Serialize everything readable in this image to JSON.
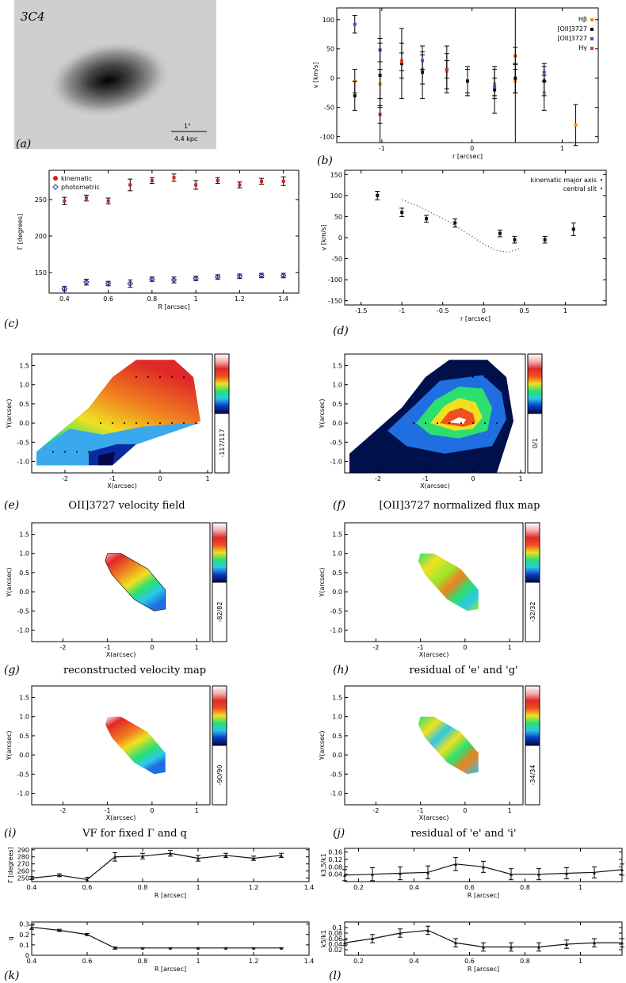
{
  "panels": {
    "a": {
      "label": "(a)",
      "object": "3C4",
      "scale_top": "1\"",
      "scale_bottom": "4.4 kpc"
    },
    "b": {
      "label": "(b)"
    },
    "c": {
      "label": "(c)"
    },
    "d": {
      "label": "(d)"
    },
    "e": {
      "label": "(e)",
      "caption": "OII]3727 velocity field",
      "colorbar": "-117/117"
    },
    "f": {
      "label": "(f)",
      "caption": "[OII]3727 normalized flux map",
      "colorbar": "0/1"
    },
    "g": {
      "label": "(g)",
      "caption": "reconstructed velocity map",
      "colorbar": "-82/82"
    },
    "h": {
      "label": "(h)",
      "caption": "residual of 'e' and 'g'",
      "colorbar": "-32/32"
    },
    "i": {
      "label": "(i)",
      "caption": "VF for fixed Γ and q",
      "colorbar": "-90/90"
    },
    "j": {
      "label": "(j)",
      "caption": "residual of 'e' and 'i'",
      "colorbar": "-34/34"
    },
    "k": {
      "label": "(k)"
    },
    "l": {
      "label": "(l)"
    }
  },
  "chart_data": [
    {
      "id": "b",
      "type": "scatter",
      "xlabel": "r [arcsec]",
      "ylabel": "v [km/s]",
      "xlim": [
        -1.5,
        1.4
      ],
      "ylim": [
        -110,
        120
      ],
      "xticks": [
        -1,
        0,
        1
      ],
      "yticks": [
        -100,
        -50,
        0,
        50,
        100
      ],
      "legend": "top-right",
      "series": [
        {
          "name": "Hβ",
          "color": "#e8902c",
          "x": [
            -1.3,
            -1.02,
            -0.78,
            -0.55,
            -0.28,
            -0.05,
            0.25,
            0.48,
            0.8,
            1.15
          ],
          "y": [
            -5,
            -10,
            30,
            15,
            12,
            -5,
            -10,
            -5,
            -25,
            -80
          ],
          "err": [
            20,
            25,
            30,
            25,
            30,
            20,
            25,
            20,
            30,
            35
          ]
        },
        {
          "name": "[OII]3727",
          "color": "#111111",
          "x": [
            -1.3,
            -1.02,
            -0.78,
            -0.55,
            -0.28,
            -0.05,
            0.25,
            0.48,
            0.8
          ],
          "y": [
            -30,
            5,
            25,
            10,
            15,
            -5,
            -20,
            0,
            -5
          ],
          "err": [
            25,
            55,
            60,
            45,
            40,
            25,
            40,
            25,
            25
          ]
        },
        {
          "name": "[OII]3727",
          "color": "#6a3dc8",
          "x": [
            -1.3,
            -1.02,
            -0.55,
            0.25,
            0.8
          ],
          "y": [
            92,
            48,
            30,
            -15,
            10
          ],
          "err": [
            15,
            20,
            15,
            15,
            15
          ]
        },
        {
          "name": "Hγ",
          "color": "#d83a2a",
          "x": [
            -1.02,
            -0.78,
            -0.28,
            0.48
          ],
          "y": [
            -62,
            28,
            15,
            38
          ],
          "err": [
            15,
            15,
            15,
            15
          ]
        }
      ]
    },
    {
      "id": "c",
      "type": "scatter",
      "xlabel": "R [arcsec]",
      "ylabel": "Γ [degrees]",
      "xlim": [
        0.33,
        1.47
      ],
      "ylim": [
        122,
        290
      ],
      "xticks": [
        0.4,
        0.6,
        0.8,
        1.0,
        1.2,
        1.4
      ],
      "yticks": [
        150,
        200,
        250
      ],
      "legend": "top-left",
      "series": [
        {
          "name": "kinematic",
          "color": "#d81e1e",
          "x": [
            0.4,
            0.5,
            0.6,
            0.7,
            0.8,
            0.9,
            1.0,
            1.1,
            1.2,
            1.3,
            1.4
          ],
          "y": [
            248,
            252,
            248,
            270,
            276,
            280,
            270,
            276,
            270,
            275,
            275
          ],
          "err": [
            5,
            4,
            4,
            8,
            4,
            5,
            6,
            4,
            4,
            4,
            6
          ]
        },
        {
          "name": "photometric",
          "color": "#2233bb",
          "x": [
            0.4,
            0.5,
            0.6,
            0.7,
            0.8,
            0.9,
            1.0,
            1.1,
            1.2,
            1.3,
            1.4
          ],
          "y": [
            128,
            137,
            135,
            135,
            141,
            140,
            142,
            144,
            145,
            146,
            146
          ],
          "err": [
            3,
            4,
            3,
            5,
            3,
            4,
            3,
            3,
            3,
            3,
            3
          ]
        }
      ]
    },
    {
      "id": "d",
      "type": "scatter",
      "xlabel": "r [arcsec]",
      "ylabel": "v [km/s]",
      "xlim": [
        -1.7,
        1.5
      ],
      "ylim": [
        -160,
        160
      ],
      "xticks": [
        -1.5,
        -1.0,
        -0.5,
        0.0,
        0.5,
        1.0
      ],
      "yticks": [
        -150,
        -100,
        -50,
        0,
        50,
        100,
        150
      ],
      "legend": "top-right",
      "series": [
        {
          "name": "kinematic major axis",
          "color": "#111111",
          "x": [
            -1.3,
            -1.0,
            -0.7,
            -0.35,
            0.2,
            0.38,
            0.75,
            1.1
          ],
          "y": [
            100,
            60,
            45,
            35,
            10,
            -5,
            -5,
            20
          ],
          "err": [
            10,
            10,
            8,
            10,
            8,
            8,
            8,
            15
          ]
        },
        {
          "name": "central slit",
          "color": "#111111",
          "dotted": true,
          "x": [
            -1.0,
            -0.8,
            -0.6,
            -0.4,
            -0.2,
            0.0,
            0.15,
            0.3,
            0.45
          ],
          "y": [
            90,
            75,
            55,
            35,
            10,
            -15,
            -30,
            -35,
            -25
          ]
        }
      ]
    },
    {
      "id": "k_top",
      "type": "line",
      "xlabel": "R [arcsec]",
      "ylabel": "Γ [degrees]",
      "xlim": [
        0.4,
        1.4
      ],
      "ylim": [
        245,
        292
      ],
      "xticks": [
        0.4,
        0.6,
        0.8,
        1.0,
        1.2,
        1.4
      ],
      "yticks": [
        250,
        260,
        270,
        280,
        290
      ],
      "series": [
        {
          "name": "",
          "color": "#111111",
          "x": [
            0.4,
            0.5,
            0.6,
            0.7,
            0.8,
            0.9,
            1.0,
            1.1,
            1.2,
            1.3
          ],
          "y": [
            250,
            254,
            248,
            280,
            281,
            285,
            278,
            282,
            278,
            282
          ],
          "err": [
            2,
            2,
            3,
            6,
            4,
            4,
            4,
            3,
            3,
            3
          ]
        }
      ]
    },
    {
      "id": "k",
      "type": "line",
      "xlabel": "R [arcsec]",
      "ylabel": "q",
      "xlim": [
        0.4,
        1.4
      ],
      "ylim": [
        0.0,
        0.32
      ],
      "xticks": [
        0.4,
        0.6,
        0.8,
        1.0,
        1.2,
        1.4
      ],
      "yticks": [
        0.0,
        0.1,
        0.2,
        0.3
      ],
      "series": [
        {
          "name": "",
          "color": "#111111",
          "x": [
            0.4,
            0.5,
            0.6,
            0.7,
            0.8,
            0.9,
            1.0,
            1.1,
            1.2,
            1.3
          ],
          "y": [
            0.27,
            0.24,
            0.2,
            0.07,
            0.07,
            0.07,
            0.07,
            0.07,
            0.07,
            0.07
          ],
          "err": [
            0.02,
            0.01,
            0.01,
            0.01,
            0.0,
            0.0,
            0.0,
            0.0,
            0.0,
            0.0
          ]
        }
      ]
    },
    {
      "id": "j_top",
      "type": "line",
      "xlabel": "R [arcsec]",
      "ylabel": "k3,5/k1",
      "xlim": [
        0.15,
        1.15
      ],
      "ylim": [
        0.0,
        0.18
      ],
      "xticks": [
        0.2,
        0.4,
        0.6,
        0.8,
        1.0
      ],
      "yticks": [
        0.04,
        0.08,
        0.12,
        0.16
      ],
      "series": [
        {
          "name": "",
          "color": "#111111",
          "x": [
            0.15,
            0.25,
            0.35,
            0.45,
            0.55,
            0.65,
            0.75,
            0.85,
            0.95,
            1.05,
            1.15
          ],
          "y": [
            0.035,
            0.04,
            0.045,
            0.05,
            0.095,
            0.08,
            0.04,
            0.04,
            0.045,
            0.05,
            0.065
          ],
          "err": [
            0.03,
            0.035,
            0.035,
            0.035,
            0.035,
            0.03,
            0.03,
            0.03,
            0.03,
            0.03,
            0.03
          ]
        }
      ]
    },
    {
      "id": "l",
      "type": "line",
      "xlabel": "R [arcsec]",
      "ylabel": "k5/k1",
      "xlim": [
        0.15,
        1.15
      ],
      "ylim": [
        0.0,
        0.12
      ],
      "xticks": [
        0.2,
        0.4,
        0.6,
        0.8,
        1.0
      ],
      "yticks": [
        0.02,
        0.04,
        0.06,
        0.08,
        0.1
      ],
      "series": [
        {
          "name": "",
          "color": "#111111",
          "x": [
            0.15,
            0.25,
            0.35,
            0.45,
            0.55,
            0.65,
            0.75,
            0.85,
            0.95,
            1.05,
            1.15
          ],
          "y": [
            0.045,
            0.06,
            0.08,
            0.09,
            0.045,
            0.03,
            0.03,
            0.03,
            0.04,
            0.045,
            0.045
          ],
          "err": [
            0.01,
            0.015,
            0.015,
            0.015,
            0.015,
            0.015,
            0.015,
            0.015,
            0.015,
            0.015,
            0.015
          ]
        }
      ]
    },
    {
      "id": "e",
      "type": "heatmap",
      "xlabel": "X(arcsec)",
      "ylabel": "Y(arcsec)",
      "xlim": [
        -2.7,
        1.1
      ],
      "ylim": [
        -1.3,
        1.8
      ],
      "xticks": [
        -2,
        -1,
        0,
        1
      ],
      "yticks": [
        -1.0,
        -0.5,
        0.0,
        0.5,
        1.0,
        1.5
      ]
    },
    {
      "id": "f",
      "type": "heatmap",
      "xlabel": "X(arcsec)",
      "ylabel": "Y(arcsec)",
      "xlim": [
        -2.7,
        1.1
      ],
      "ylim": [
        -1.3,
        1.8
      ],
      "xticks": [
        -2,
        -1,
        0,
        1
      ],
      "yticks": [
        -1.0,
        -0.5,
        0.0,
        0.5,
        1.0,
        1.5
      ]
    },
    {
      "id": "g",
      "type": "heatmap",
      "xlabel": "X(arcsec)",
      "ylabel": "Y(arcsec)",
      "xlim": [
        -2.7,
        1.3
      ],
      "ylim": [
        -1.3,
        1.8
      ],
      "xticks": [
        -2,
        -1,
        0,
        1
      ],
      "yticks": [
        -1.0,
        -0.5,
        0.0,
        0.5,
        1.0,
        1.5
      ]
    },
    {
      "id": "h",
      "type": "heatmap",
      "xlabel": "X(arcsec)",
      "ylabel": "Y(arcsec)",
      "xlim": [
        -2.7,
        1.3
      ],
      "ylim": [
        -1.3,
        1.8
      ],
      "xticks": [
        -2,
        -1,
        0,
        1
      ],
      "yticks": [
        -1.0,
        -0.5,
        0.0,
        0.5,
        1.0,
        1.5
      ]
    },
    {
      "id": "i",
      "type": "heatmap",
      "xlabel": "X(arcsec)",
      "ylabel": "Y(arcsec)",
      "xlim": [
        -2.7,
        1.3
      ],
      "ylim": [
        -1.3,
        1.8
      ],
      "xticks": [
        -2,
        -1,
        0,
        1
      ],
      "yticks": [
        -1.0,
        -0.5,
        0.0,
        0.5,
        1.0,
        1.5
      ]
    },
    {
      "id": "j",
      "type": "heatmap",
      "xlabel": "X(arcsec)",
      "ylabel": "Y(arcsec)",
      "xlim": [
        -2.7,
        1.3
      ],
      "ylim": [
        -1.3,
        1.8
      ],
      "xticks": [
        -2,
        -1,
        0,
        1
      ],
      "yticks": [
        -1.0,
        -0.5,
        0.0,
        0.5,
        1.0,
        1.5
      ]
    }
  ]
}
